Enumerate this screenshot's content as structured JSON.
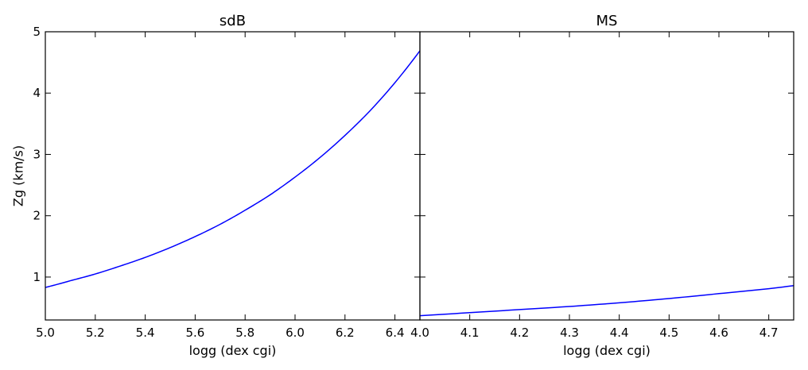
{
  "chart_data": [
    {
      "type": "line",
      "title": "sdB",
      "xlabel": "logg (dex cgi)",
      "ylabel": "Zg (km/s)",
      "xlim": [
        5.0,
        6.5
      ],
      "ylim": [
        0.3,
        5.0
      ],
      "xticks": [
        "5.0",
        "5.2",
        "5.4",
        "5.6",
        "5.8",
        "6.0",
        "6.2",
        "6.4"
      ],
      "yticks": [
        "1",
        "2",
        "3",
        "4",
        "5"
      ],
      "color": "#0000ff",
      "series": [
        {
          "x": [
            5.0,
            5.1,
            5.2,
            5.3,
            5.4,
            5.5,
            5.6,
            5.7,
            5.8,
            5.9,
            6.0,
            6.1,
            6.2,
            6.3,
            6.4,
            6.5
          ],
          "values": [
            0.83,
            0.94,
            1.05,
            1.18,
            1.32,
            1.48,
            1.66,
            1.86,
            2.09,
            2.34,
            2.63,
            2.95,
            3.31,
            3.71,
            4.17,
            4.69
          ]
        }
      ]
    },
    {
      "type": "line",
      "title": "MS",
      "xlabel": "logg (dex cgi)",
      "ylabel": "",
      "xlim": [
        4.0,
        4.75
      ],
      "ylim": [
        0.3,
        5.0
      ],
      "xticks": [
        "4.0",
        "4.1",
        "4.2",
        "4.3",
        "4.4",
        "4.5",
        "4.6",
        "4.7"
      ],
      "yticks": [],
      "color": "#0000ff",
      "series": [
        {
          "x": [
            4.0,
            4.1,
            4.2,
            4.3,
            4.4,
            4.5,
            4.6,
            4.7,
            4.75
          ],
          "values": [
            0.37,
            0.42,
            0.47,
            0.52,
            0.58,
            0.65,
            0.73,
            0.81,
            0.86
          ]
        }
      ]
    }
  ]
}
